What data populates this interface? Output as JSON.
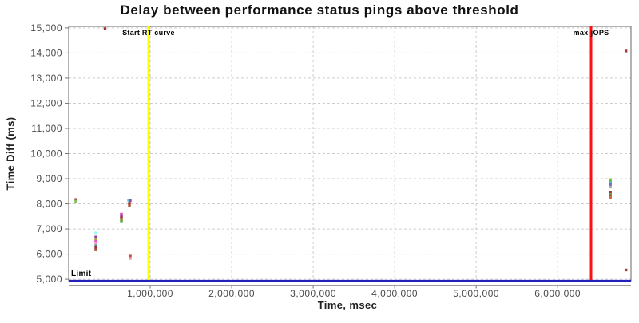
{
  "chart_data": {
    "type": "scatter",
    "title": "Delay between performance status pings above threshold",
    "xlabel": "Time, msec",
    "ylabel": "Time Diff (ms)",
    "xlim": [
      0,
      6900000
    ],
    "ylim": [
      5000,
      15000
    ],
    "grid": "dashed-lightgray",
    "background": "#ffffff",
    "colors": {
      "grid": "#cccccc",
      "plot_border": "#808080",
      "tick_text": "#4a4a4a",
      "axis_line": "#a0a0a0",
      "start_rt_line": "#ffff00",
      "max_jops_line": "#ff1111",
      "limit_line": "#2222bb"
    },
    "x_ticks": [
      {
        "v": 1000000,
        "label": "1,000,000"
      },
      {
        "v": 2000000,
        "label": "2,000,000"
      },
      {
        "v": 3000000,
        "label": "3,000,000"
      },
      {
        "v": 4000000,
        "label": "4,000,000"
      },
      {
        "v": 5000000,
        "label": "5,000,000"
      },
      {
        "v": 6000000,
        "label": "6,000,000"
      }
    ],
    "y_ticks": [
      {
        "v": 5000,
        "label": "5,000"
      },
      {
        "v": 6000,
        "label": "6,000"
      },
      {
        "v": 7000,
        "label": "7,000"
      },
      {
        "v": 8000,
        "label": "8,000"
      },
      {
        "v": 9000,
        "label": "9,000"
      },
      {
        "v": 10000,
        "label": "10,000"
      },
      {
        "v": 11000,
        "label": "11,000"
      },
      {
        "v": 12000,
        "label": "12,000"
      },
      {
        "v": 13000,
        "label": "13,000"
      },
      {
        "v": 14000,
        "label": "14,000"
      },
      {
        "v": 15000,
        "label": "15,000"
      }
    ],
    "annotations": [
      {
        "kind": "vline",
        "name": "start-rt-curve",
        "label": "Start RT curve",
        "x": 980000,
        "color": "#ffff00",
        "width": 3
      },
      {
        "kind": "vline",
        "name": "max-jops",
        "label": "max-jOPS",
        "x": 6410000,
        "color": "#ff1111",
        "width": 3
      },
      {
        "kind": "hline",
        "name": "limit",
        "label": "Limit",
        "y": 5000,
        "color": "#2222bb",
        "width": 2.5
      }
    ],
    "points": [
      {
        "x": 88000,
        "y": 8170,
        "c": "#a43b3b"
      },
      {
        "x": 88000,
        "y": 8100,
        "c": "#7bc25e"
      },
      {
        "x": 333000,
        "y": 6840,
        "c": "#8ef7f7"
      },
      {
        "x": 333000,
        "y": 6680,
        "c": "#9b3bb0"
      },
      {
        "x": 333000,
        "y": 6590,
        "c": "#a8a832"
      },
      {
        "x": 333000,
        "y": 6510,
        "c": "#e84fd0"
      },
      {
        "x": 333000,
        "y": 6430,
        "c": "#f79bc4"
      },
      {
        "x": 333000,
        "y": 6330,
        "c": "#2f9e9e"
      },
      {
        "x": 333000,
        "y": 6250,
        "c": "#a03434"
      },
      {
        "x": 333000,
        "y": 6170,
        "c": "#a85a38"
      },
      {
        "x": 446000,
        "y": 14970,
        "c": "#a03434"
      },
      {
        "x": 647000,
        "y": 7590,
        "c": "#d83bbd"
      },
      {
        "x": 647000,
        "y": 7510,
        "c": "#8a38a8"
      },
      {
        "x": 647000,
        "y": 7440,
        "c": "#a83434"
      },
      {
        "x": 647000,
        "y": 7380,
        "c": "#d8783a"
      },
      {
        "x": 647000,
        "y": 7320,
        "c": "#57a84a"
      },
      {
        "x": 735000,
        "y": 8140,
        "c": "#5fc9c9"
      },
      {
        "x": 755000,
        "y": 8130,
        "c": "#9b44b8"
      },
      {
        "x": 745000,
        "y": 8020,
        "c": "#a03434"
      },
      {
        "x": 745000,
        "y": 7920,
        "c": "#a85a38"
      },
      {
        "x": 755000,
        "y": 5920,
        "c": "#c44a4a"
      },
      {
        "x": 755000,
        "y": 5830,
        "c": "#eb9a9a"
      },
      {
        "x": 6647000,
        "y": 8970,
        "c": "#bdd23c"
      },
      {
        "x": 6647000,
        "y": 8900,
        "c": "#4fba4f"
      },
      {
        "x": 6647000,
        "y": 8830,
        "c": "#49c2c2"
      },
      {
        "x": 6647000,
        "y": 8760,
        "c": "#6a6ad0"
      },
      {
        "x": 6647000,
        "y": 8670,
        "c": "#ababab"
      },
      {
        "x": 6647000,
        "y": 8460,
        "c": "#a03434"
      },
      {
        "x": 6647000,
        "y": 8380,
        "c": "#4fa84a"
      },
      {
        "x": 6647000,
        "y": 8320,
        "c": "#cc4040"
      },
      {
        "x": 6647000,
        "y": 8250,
        "c": "#cc6a3a"
      },
      {
        "x": 6838000,
        "y": 14080,
        "c": "#a83a3a"
      },
      {
        "x": 6838000,
        "y": 5370,
        "c": "#a83a3a"
      }
    ]
  }
}
